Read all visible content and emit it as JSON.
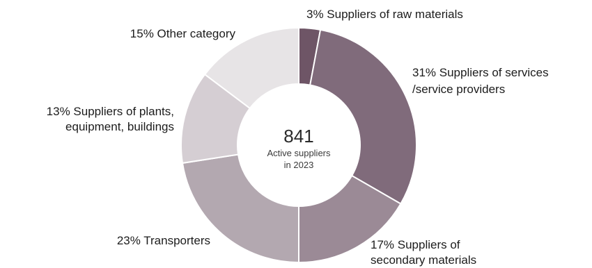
{
  "chart_data": {
    "type": "pie",
    "variant": "donut",
    "start_angle_deg": 0,
    "direction": "clockwise",
    "center": {
      "value": "841",
      "caption_lines": [
        "Active suppliers",
        "in 2023"
      ]
    },
    "slices": [
      {
        "percent": 3,
        "label_lines": [
          "3% Suppliers of raw materials"
        ],
        "color": "#6e5566"
      },
      {
        "percent": 31,
        "label_lines": [
          "31% Suppliers of services",
          "/service providers"
        ],
        "color": "#806b7b"
      },
      {
        "percent": 17,
        "label_lines": [
          "17% Suppliers of",
          "secondary materials"
        ],
        "color": "#9b8a96"
      },
      {
        "percent": 23,
        "label_lines": [
          "23% Transporters"
        ],
        "color": "#b3a8b0"
      },
      {
        "percent": 13,
        "label_lines": [
          "13% Suppliers of plants,",
          "equipment, buildings"
        ],
        "color": "#d5ced3"
      },
      {
        "percent": 15,
        "label_lines": [
          "15% Other category"
        ],
        "color": "#e7e4e6"
      }
    ]
  }
}
